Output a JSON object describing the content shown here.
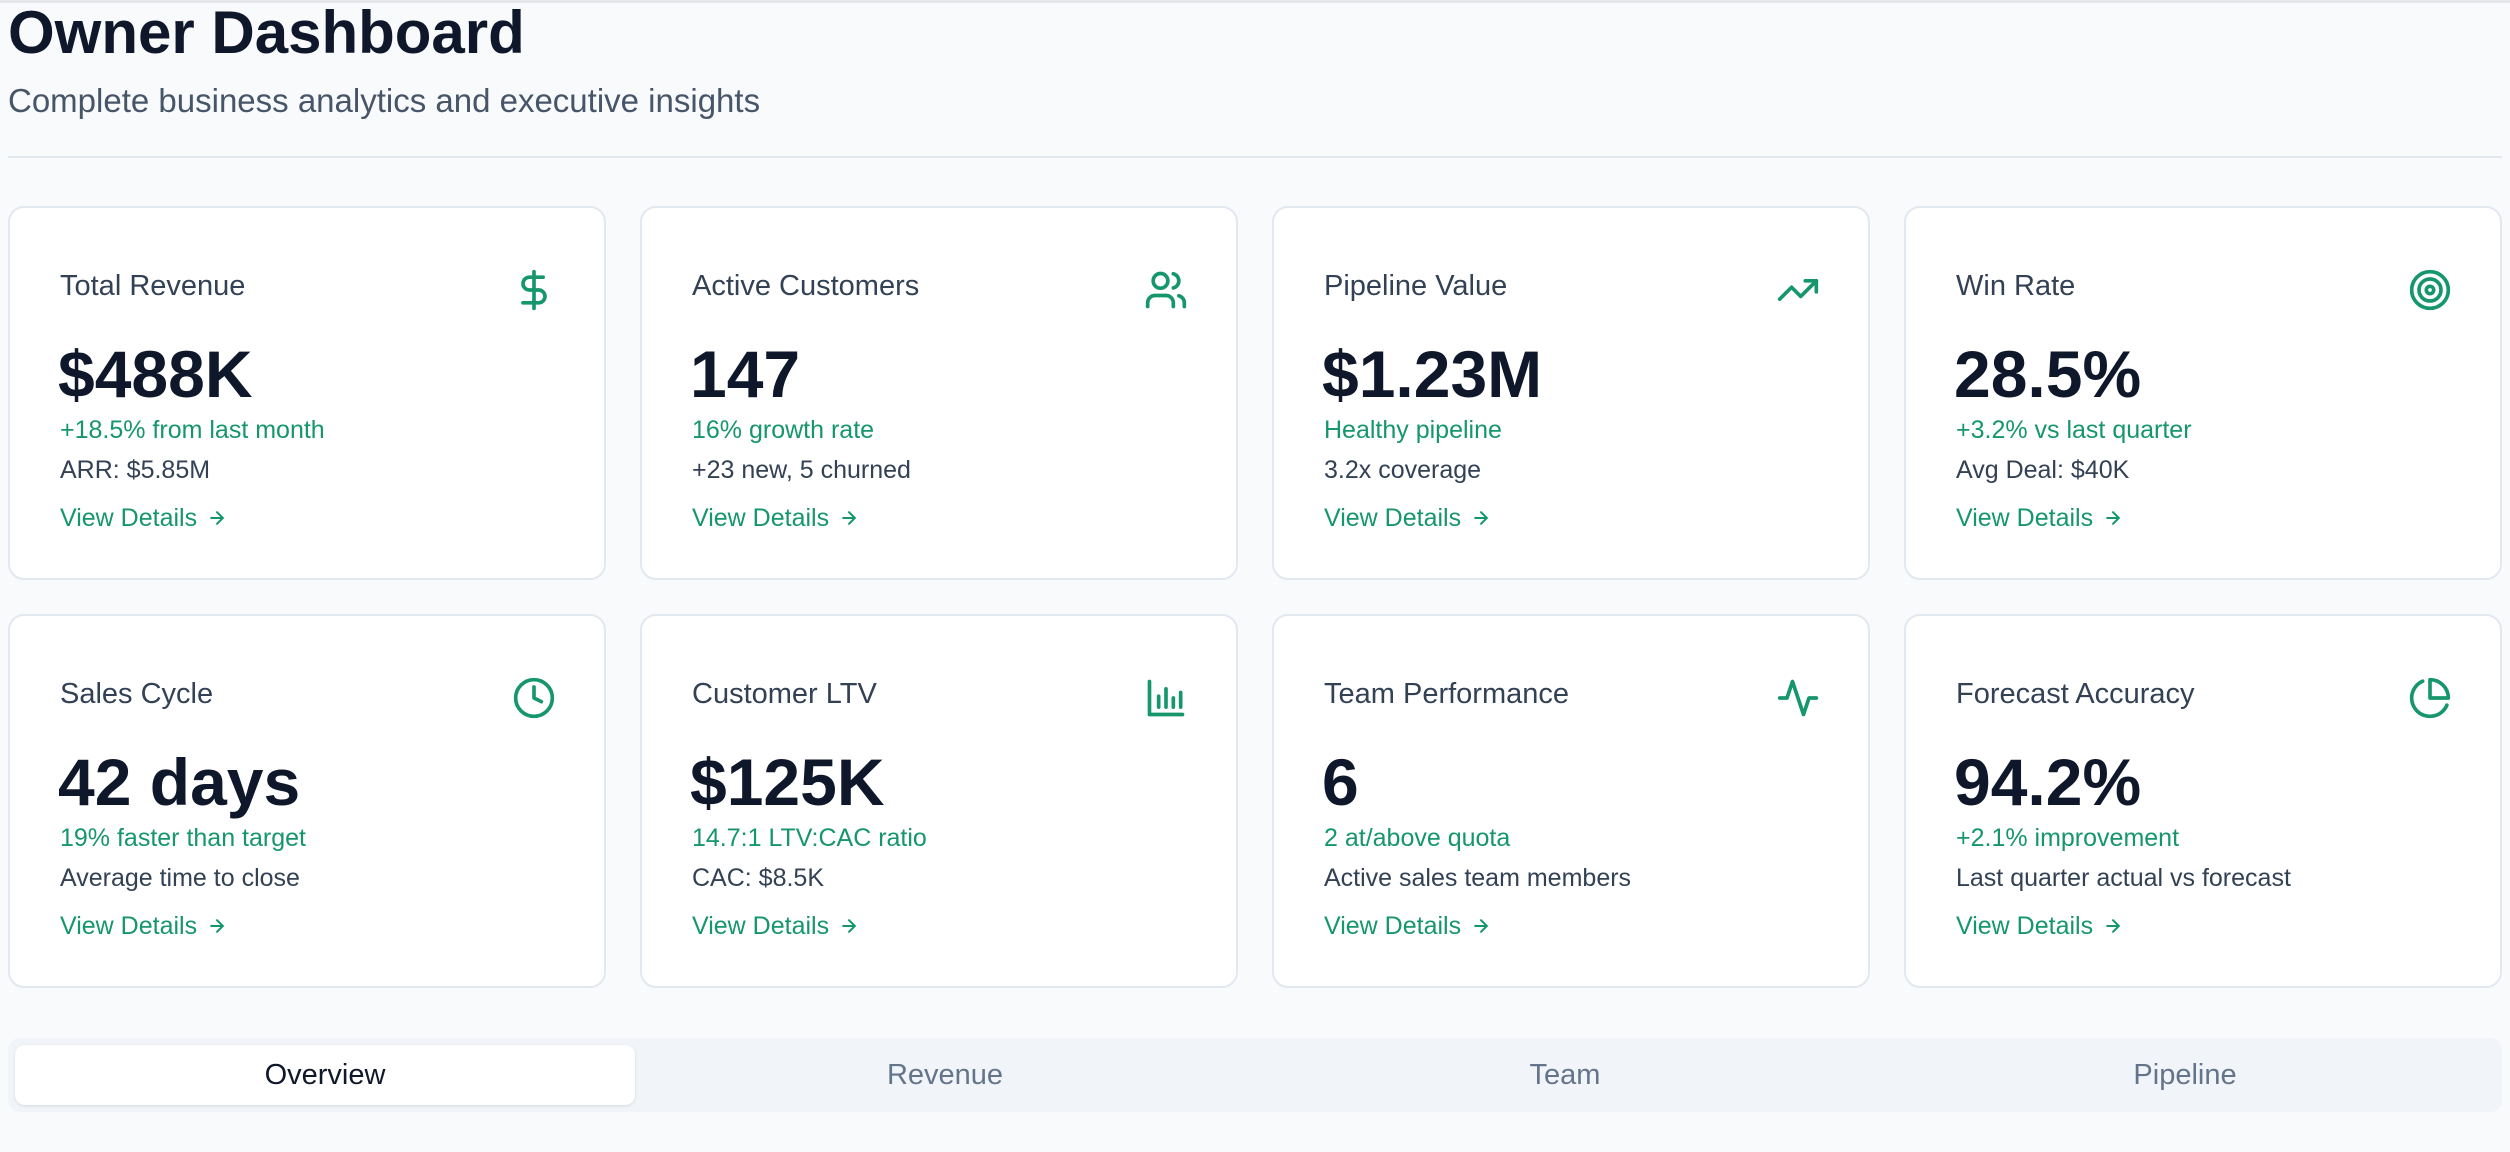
{
  "header": {
    "title": "Owner Dashboard",
    "subtitle": "Complete business analytics and executive insights"
  },
  "accent_color": "#16966b",
  "cards": [
    {
      "title": "Total Revenue",
      "icon": "dollar-icon",
      "value": "$488K",
      "highlight": "+18.5% from last month",
      "note": "ARR: $5.85M",
      "link": "View Details"
    },
    {
      "title": "Active Customers",
      "icon": "users-icon",
      "value": "147",
      "highlight": "16% growth rate",
      "note": "+23 new, 5 churned",
      "link": "View Details"
    },
    {
      "title": "Pipeline Value",
      "icon": "trending-up-icon",
      "value": "$1.23M",
      "highlight": "Healthy pipeline",
      "note": "3.2x coverage",
      "link": "View Details"
    },
    {
      "title": "Win Rate",
      "icon": "target-icon",
      "value": "28.5%",
      "highlight": "+3.2% vs last quarter",
      "note": "Avg Deal: $40K",
      "link": "View Details"
    },
    {
      "title": "Sales Cycle",
      "icon": "clock-icon",
      "value": "42 days",
      "highlight": "19% faster than target",
      "note": "Average time to close",
      "link": "View Details"
    },
    {
      "title": "Customer LTV",
      "icon": "bar-chart-icon",
      "value": "$125K",
      "highlight": "14.7:1 LTV:CAC ratio",
      "note": "CAC: $8.5K",
      "link": "View Details"
    },
    {
      "title": "Team Performance",
      "icon": "activity-icon",
      "value": "6",
      "highlight": "2 at/above quota",
      "note": "Active sales team members",
      "link": "View Details"
    },
    {
      "title": "Forecast Accuracy",
      "icon": "pie-chart-icon",
      "value": "94.2%",
      "highlight": "+2.1% improvement",
      "note": "Last quarter actual vs forecast",
      "link": "View Details"
    }
  ],
  "tabs": [
    {
      "label": "Overview",
      "active": true
    },
    {
      "label": "Revenue",
      "active": false
    },
    {
      "label": "Team",
      "active": false
    },
    {
      "label": "Pipeline",
      "active": false
    }
  ]
}
